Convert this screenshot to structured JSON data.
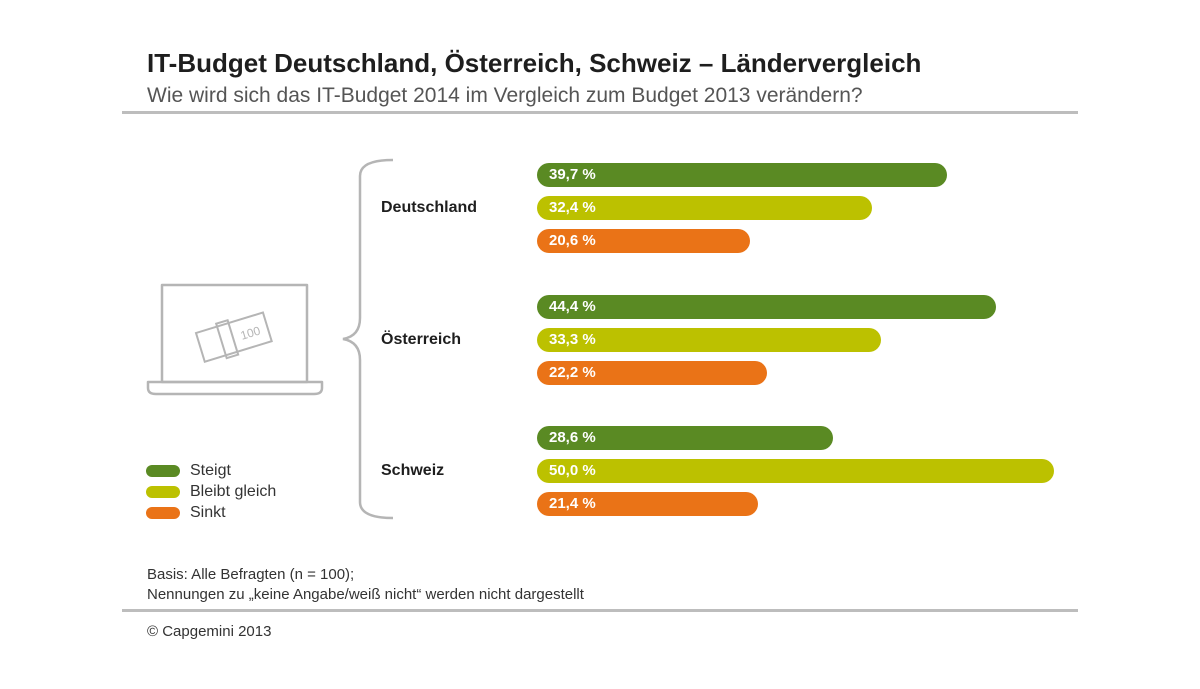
{
  "title": "IT-Budget Deutschland, Österreich, Schweiz – Ländervergleich",
  "subtitle": "Wie wird sich das IT-Budget 2014 im Vergleich zum Budget 2013 verändern?",
  "notes": {
    "line1": "Basis: Alle Befragten (n = 100);",
    "line2": "Nennungen zu „keine Angabe/weiß nicht“ werden nicht dargestellt"
  },
  "copyright": "© Capgemini 2013",
  "illustration": {
    "banknote_text": "100"
  },
  "colors": {
    "steigt": "#5a8a23",
    "bleibt": "#bcc100",
    "sinkt": "#ea7317"
  },
  "chart_data": {
    "type": "bar",
    "orientation": "horizontal",
    "categories": [
      "Deutschland",
      "Österreich",
      "Schweiz"
    ],
    "series": [
      {
        "name": "Steigt",
        "values": [
          39.7,
          44.4,
          28.6
        ],
        "labels": [
          "39,7 %",
          "44,4 %",
          "28,6 %"
        ]
      },
      {
        "name": "Bleibt gleich",
        "values": [
          32.4,
          33.3,
          50.0
        ],
        "labels": [
          "32,4 %",
          "33,3 %",
          "50,0 %"
        ]
      },
      {
        "name": "Sinkt",
        "values": [
          20.6,
          22.2,
          21.4
        ],
        "labels": [
          "20,6 %",
          "22,2 %",
          "21,4 %"
        ]
      }
    ],
    "legend_position": "bottom-left",
    "grid": false
  }
}
